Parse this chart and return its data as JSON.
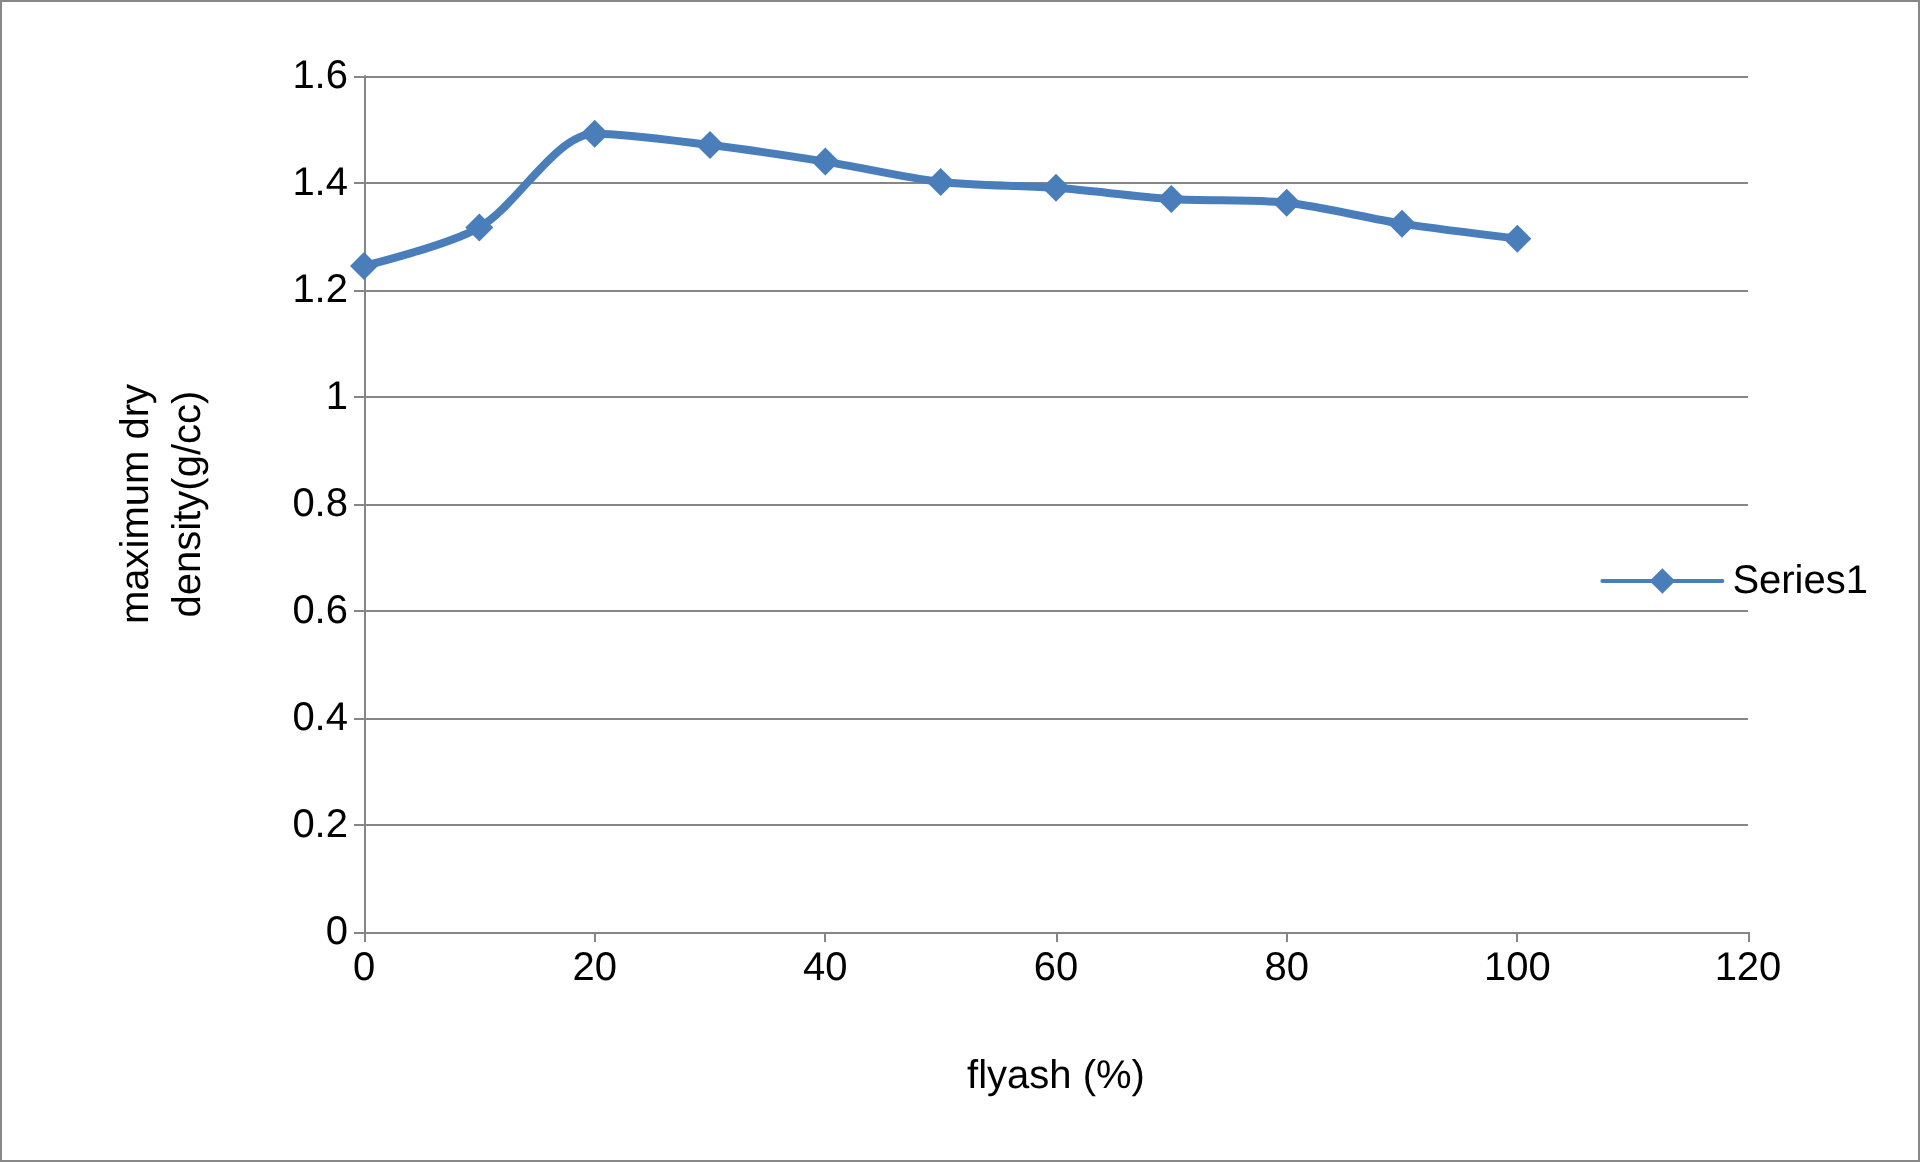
{
  "chart_data": {
    "type": "line",
    "xlabel": "flyash (%)",
    "ylabel": "maximum dry\ndensity(g/cc)",
    "x": [
      0,
      10,
      20,
      30,
      40,
      50,
      60,
      70,
      80,
      90,
      100
    ],
    "series": [
      {
        "name": "Series1",
        "color": "#4a7ebb",
        "values": [
          1.245,
          1.317,
          1.492,
          1.471,
          1.44,
          1.402,
          1.391,
          1.37,
          1.363,
          1.324,
          1.296
        ]
      }
    ],
    "xlim": [
      0,
      120
    ],
    "xticks": [
      0,
      20,
      40,
      60,
      80,
      100,
      120
    ],
    "ylim": [
      0,
      1.6
    ],
    "yticks": [
      0,
      0.2,
      0.4,
      0.6,
      0.8,
      1,
      1.2,
      1.4,
      1.6
    ],
    "grid": "y",
    "legend": "right",
    "marker": "diamond",
    "line_style": "solid"
  }
}
